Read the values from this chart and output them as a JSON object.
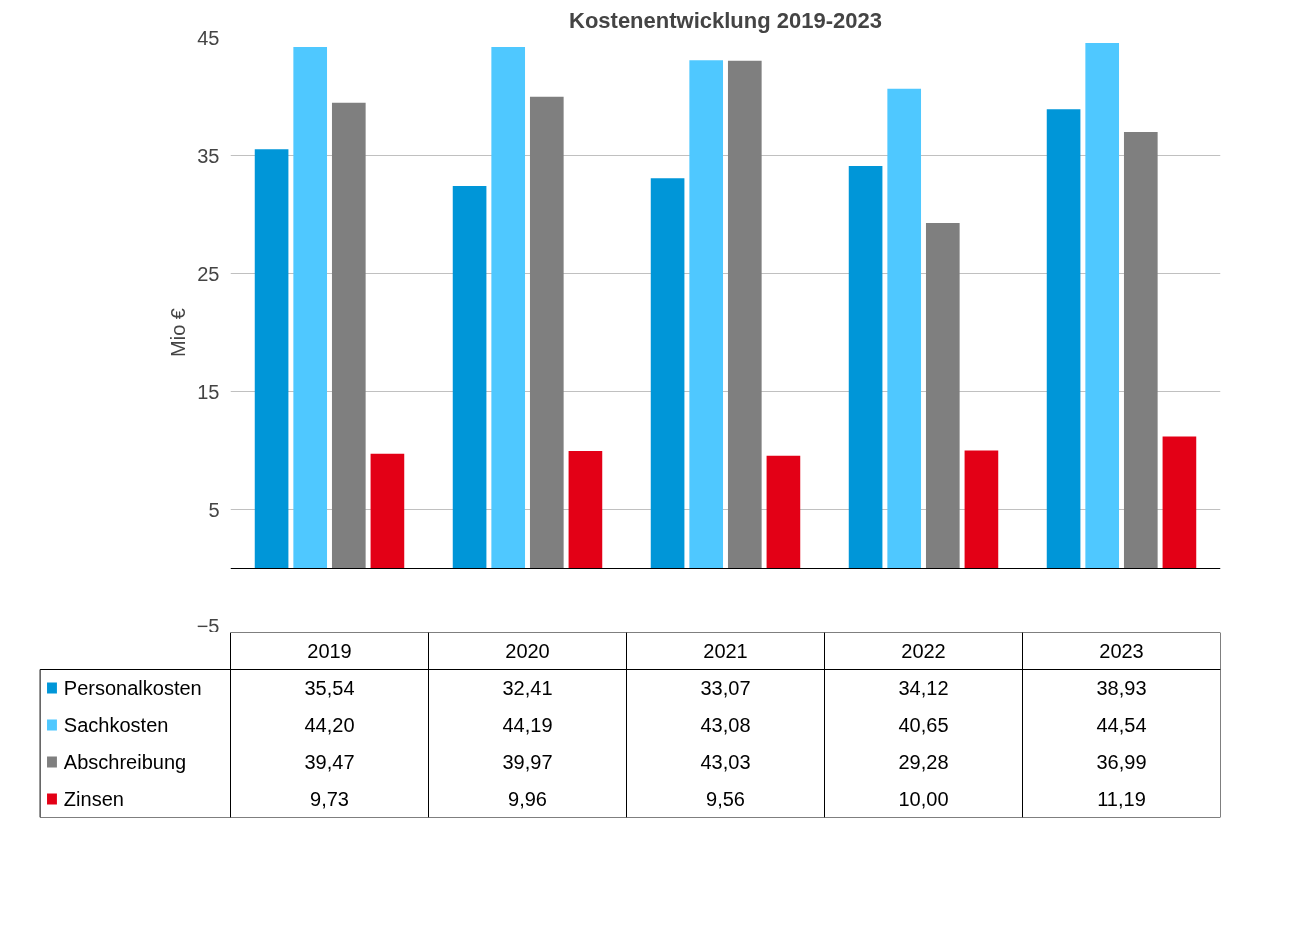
{
  "chart_data": {
    "type": "bar",
    "title": "Kostenentwicklung 2019-2023",
    "ylabel": "Mio €",
    "categories": [
      "2019",
      "2020",
      "2021",
      "2022",
      "2023"
    ],
    "series": [
      {
        "name": "Personalkosten",
        "color": "#0096d8",
        "values": [
          35.54,
          32.41,
          33.07,
          34.12,
          38.93
        ],
        "value_labels": [
          "35,54",
          "32,41",
          "33,07",
          "34,12",
          "38,93"
        ]
      },
      {
        "name": "Sachkosten",
        "color": "#4fc8ff",
        "values": [
          44.2,
          44.19,
          43.08,
          40.65,
          44.54
        ],
        "value_labels": [
          "44,20",
          "44,19",
          "43,08",
          "40,65",
          "44,54"
        ]
      },
      {
        "name": "Abschreibung",
        "color": "#7f7f7f",
        "values": [
          39.47,
          39.97,
          43.03,
          29.28,
          36.99
        ],
        "value_labels": [
          "39,47",
          "39,97",
          "43,03",
          "29,28",
          "36,99"
        ]
      },
      {
        "name": "Zinsen",
        "color": "#e30016",
        "values": [
          9.73,
          9.96,
          9.56,
          10.0,
          11.19
        ],
        "value_labels": [
          "9,73",
          "9,96",
          "9,56",
          "10,00",
          "11,19"
        ]
      }
    ],
    "ylim": [
      -5,
      45
    ],
    "yticks": [
      -5,
      5,
      15,
      25,
      35,
      45
    ],
    "grid": "y",
    "legend": "bottom",
    "tick_labels": "y"
  }
}
